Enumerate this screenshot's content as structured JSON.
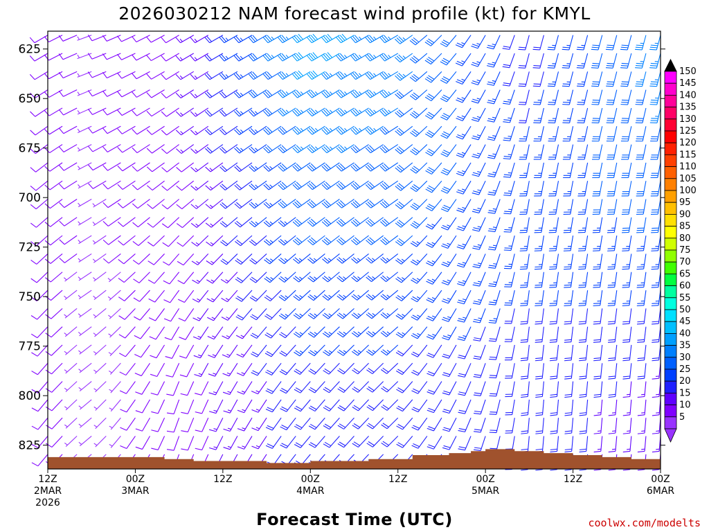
{
  "title": "2026030212 NAM forecast wind profile (kt) for KMYL",
  "xlabel": "Forecast Time (UTC)",
  "credit": "coolwx.com/modelts",
  "colors": {
    "terrain": "#a0522d",
    "frame": "#000000",
    "credit": "#cc0000"
  },
  "chart_data": {
    "type": "wind_barbs",
    "yaxis": {
      "label": "",
      "ticks": [
        625,
        650,
        675,
        700,
        725,
        750,
        775,
        800,
        825
      ],
      "range": [
        837,
        616
      ],
      "inverted": true
    },
    "xaxis": {
      "range": [
        0,
        84
      ],
      "ticks": [
        {
          "hour": 0,
          "l1": "12Z",
          "l2": "2MAR",
          "l3": "2026"
        },
        {
          "hour": 12,
          "l1": "00Z",
          "l2": "3MAR",
          "l3": ""
        },
        {
          "hour": 24,
          "l1": "12Z",
          "l2": "",
          "l3": ""
        },
        {
          "hour": 36,
          "l1": "00Z",
          "l2": "4MAR",
          "l3": ""
        },
        {
          "hour": 48,
          "l1": "12Z",
          "l2": "",
          "l3": ""
        },
        {
          "hour": 60,
          "l1": "00Z",
          "l2": "5MAR",
          "l3": ""
        },
        {
          "hour": 72,
          "l1": "12Z",
          "l2": "",
          "l3": ""
        },
        {
          "hour": 84,
          "l1": "00Z",
          "l2": "6MAR",
          "l3": ""
        }
      ]
    },
    "surface_pressure": [
      {
        "hour": 0,
        "p": 831
      },
      {
        "hour": 12,
        "p": 831
      },
      {
        "hour": 16,
        "p": 832
      },
      {
        "hour": 20,
        "p": 833
      },
      {
        "hour": 30,
        "p": 834
      },
      {
        "hour": 36,
        "p": 833
      },
      {
        "hour": 44,
        "p": 832
      },
      {
        "hour": 50,
        "p": 830
      },
      {
        "hour": 55,
        "p": 829
      },
      {
        "hour": 58,
        "p": 828
      },
      {
        "hour": 60,
        "p": 827
      },
      {
        "hour": 64,
        "p": 828
      },
      {
        "hour": 68,
        "p": 829
      },
      {
        "hour": 72,
        "p": 830
      },
      {
        "hour": 76,
        "p": 831
      },
      {
        "hour": 80,
        "p": 832
      },
      {
        "hour": 84,
        "p": 833
      }
    ],
    "wind_samples": [
      {
        "hour": 0,
        "levels": [
          {
            "p": 625,
            "spd": 10,
            "dir": 240
          },
          {
            "p": 700,
            "spd": 10,
            "dir": 230
          },
          {
            "p": 800,
            "spd": 10,
            "dir": 220
          }
        ]
      },
      {
        "hour": 6,
        "levels": [
          {
            "p": 625,
            "spd": 7,
            "dir": 250
          },
          {
            "p": 700,
            "spd": 7,
            "dir": 240
          },
          {
            "p": 800,
            "spd": 5,
            "dir": 230
          }
        ]
      },
      {
        "hour": 18,
        "levels": [
          {
            "p": 625,
            "spd": 10,
            "dir": 240
          },
          {
            "p": 700,
            "spd": 10,
            "dir": 230
          },
          {
            "p": 800,
            "spd": 10,
            "dir": 200
          }
        ]
      },
      {
        "hour": 36,
        "levels": [
          {
            "p": 625,
            "spd": 40,
            "dir": 240
          },
          {
            "p": 700,
            "spd": 30,
            "dir": 235
          },
          {
            "p": 800,
            "spd": 20,
            "dir": 220
          }
        ]
      },
      {
        "hour": 48,
        "levels": [
          {
            "p": 625,
            "spd": 35,
            "dir": 240
          },
          {
            "p": 700,
            "spd": 30,
            "dir": 235
          },
          {
            "p": 800,
            "spd": 20,
            "dir": 225
          }
        ]
      },
      {
        "hour": 66,
        "levels": [
          {
            "p": 625,
            "spd": 20,
            "dir": 195
          },
          {
            "p": 700,
            "spd": 25,
            "dir": 190
          },
          {
            "p": 800,
            "spd": 20,
            "dir": 185
          }
        ]
      },
      {
        "hour": 84,
        "levels": [
          {
            "p": 625,
            "spd": 35,
            "dir": 195
          },
          {
            "p": 700,
            "spd": 30,
            "dir": 190
          },
          {
            "p": 800,
            "spd": 15,
            "dir": 185
          }
        ]
      }
    ],
    "colorbar": {
      "unit": "kt",
      "labels": [
        150,
        145,
        140,
        135,
        130,
        125,
        120,
        115,
        110,
        105,
        100,
        95,
        90,
        85,
        80,
        75,
        70,
        65,
        60,
        55,
        50,
        45,
        40,
        35,
        30,
        25,
        20,
        15,
        10,
        5
      ],
      "colors": [
        "#ff00ff",
        "#ff00cc",
        "#ff0099",
        "#ff0066",
        "#ff0033",
        "#ff0000",
        "#ff2000",
        "#ff4000",
        "#ff6000",
        "#ff8000",
        "#ffa000",
        "#ffc000",
        "#ffe000",
        "#ffff00",
        "#d0ff00",
        "#90ff00",
        "#40ff00",
        "#00ff40",
        "#00ffa0",
        "#00ffe0",
        "#00e0ff",
        "#00c0ff",
        "#00a0ff",
        "#0080ff",
        "#0060ff",
        "#0040ff",
        "#2020ff",
        "#6000ff",
        "#8000ff",
        "#9933ff"
      ]
    }
  }
}
